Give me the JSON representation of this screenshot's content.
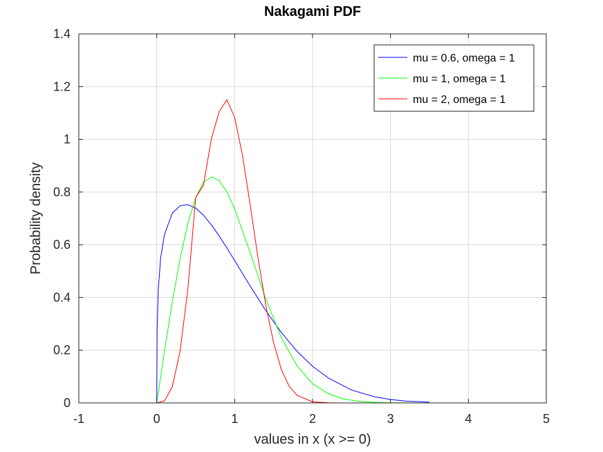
{
  "chart_data": {
    "type": "line",
    "title": "Nakagami PDF",
    "xlabel": "values in x (x >= 0)",
    "ylabel": "Probability density",
    "xlim": [
      -1,
      5
    ],
    "ylim": [
      0,
      1.4
    ],
    "xticks": [
      -1,
      0,
      1,
      2,
      3,
      4,
      5
    ],
    "yticks": [
      0,
      0.2,
      0.4,
      0.6,
      0.8,
      1,
      1.2,
      1.4
    ],
    "xtick_labels": [
      "-1",
      "0",
      "1",
      "2",
      "3",
      "4",
      "5"
    ],
    "ytick_labels": [
      "0",
      "0.2",
      "0.4",
      "0.6",
      "0.8",
      "1",
      "1.2",
      "1.4"
    ],
    "grid": true,
    "legend_position": "top-right",
    "series": [
      {
        "name": "mu = 0.6, omega = 1",
        "color": "#0000ff",
        "x": [
          -1.0,
          0.0,
          0.005,
          0.02,
          0.05,
          0.1,
          0.2,
          0.3,
          0.4,
          0.5,
          0.6,
          0.7,
          0.8,
          0.9,
          1.0,
          1.2,
          1.4,
          1.6,
          1.8,
          2.0,
          2.2,
          2.5,
          2.8,
          3.0,
          3.2,
          3.5
        ],
        "y": [
          0,
          0,
          0.28,
          0.43,
          0.55,
          0.64,
          0.72,
          0.748,
          0.752,
          0.739,
          0.712,
          0.676,
          0.634,
          0.588,
          0.54,
          0.443,
          0.35,
          0.267,
          0.196,
          0.139,
          0.095,
          0.049,
          0.023,
          0.013,
          0.007,
          0.003
        ]
      },
      {
        "name": "mu = 1, omega = 1",
        "color": "#00ff00",
        "x": [
          -1.0,
          0.0,
          0.1,
          0.2,
          0.3,
          0.4,
          0.5,
          0.6,
          0.7071,
          0.8,
          0.9,
          1.0,
          1.2,
          1.4,
          1.6,
          1.8,
          2.0,
          2.2,
          2.4,
          2.6,
          2.8,
          3.0,
          3.2,
          3.5,
          5.0
        ],
        "y": [
          0,
          0,
          0.198,
          0.384,
          0.548,
          0.682,
          0.779,
          0.837,
          0.858,
          0.844,
          0.801,
          0.736,
          0.569,
          0.394,
          0.247,
          0.141,
          0.073,
          0.035,
          0.015,
          0.006,
          0.0022,
          0.0007,
          0.0002,
          0.0,
          0
        ]
      },
      {
        "name": "mu = 2, omega = 1",
        "color": "#ff0000",
        "x": [
          -1.0,
          0.0,
          0.1,
          0.2,
          0.3,
          0.4,
          0.5,
          0.6,
          0.7,
          0.8,
          0.9,
          1.0,
          1.1,
          1.2,
          1.3,
          1.4,
          1.5,
          1.6,
          1.7,
          1.8,
          2.0,
          2.2,
          2.4,
          2.6,
          2.8,
          3.0,
          5.0
        ],
        "y": [
          0,
          0,
          0.0078,
          0.0615,
          0.197,
          0.433,
          0.779,
          0.826,
          1.0,
          1.104,
          1.15,
          1.083,
          0.94,
          0.75,
          0.55,
          0.37,
          0.228,
          0.126,
          0.063,
          0.029,
          0.0043,
          0.0005,
          5e-05,
          0.0,
          0.0,
          0.0,
          0
        ]
      }
    ]
  }
}
